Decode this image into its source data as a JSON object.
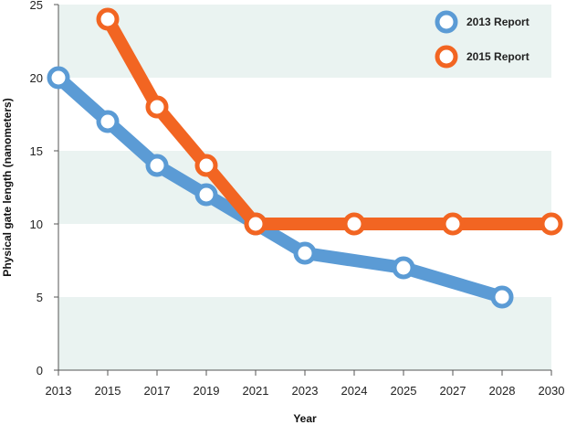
{
  "chart_data": {
    "type": "line",
    "title": "",
    "xlabel": "Year",
    "ylabel": "Physical gate length (nanometers)",
    "ylim": [
      0,
      25
    ],
    "yticks": [
      0,
      5,
      10,
      15,
      20,
      25
    ],
    "categories": [
      "2013",
      "2015",
      "2017",
      "2019",
      "2021",
      "2023",
      "2024",
      "2025",
      "2027",
      "2028",
      "2030"
    ],
    "legend_position": "top-right",
    "grid": "alternating horizontal bands",
    "series": [
      {
        "name": "2013 Report",
        "color": "#5b9bd5",
        "values": [
          20,
          17,
          14,
          12,
          10,
          8,
          null,
          7,
          null,
          5,
          null
        ]
      },
      {
        "name": "2015 Report",
        "color": "#f26522",
        "values": [
          null,
          24,
          18,
          14,
          10,
          null,
          10,
          null,
          10,
          null,
          10
        ]
      }
    ]
  }
}
